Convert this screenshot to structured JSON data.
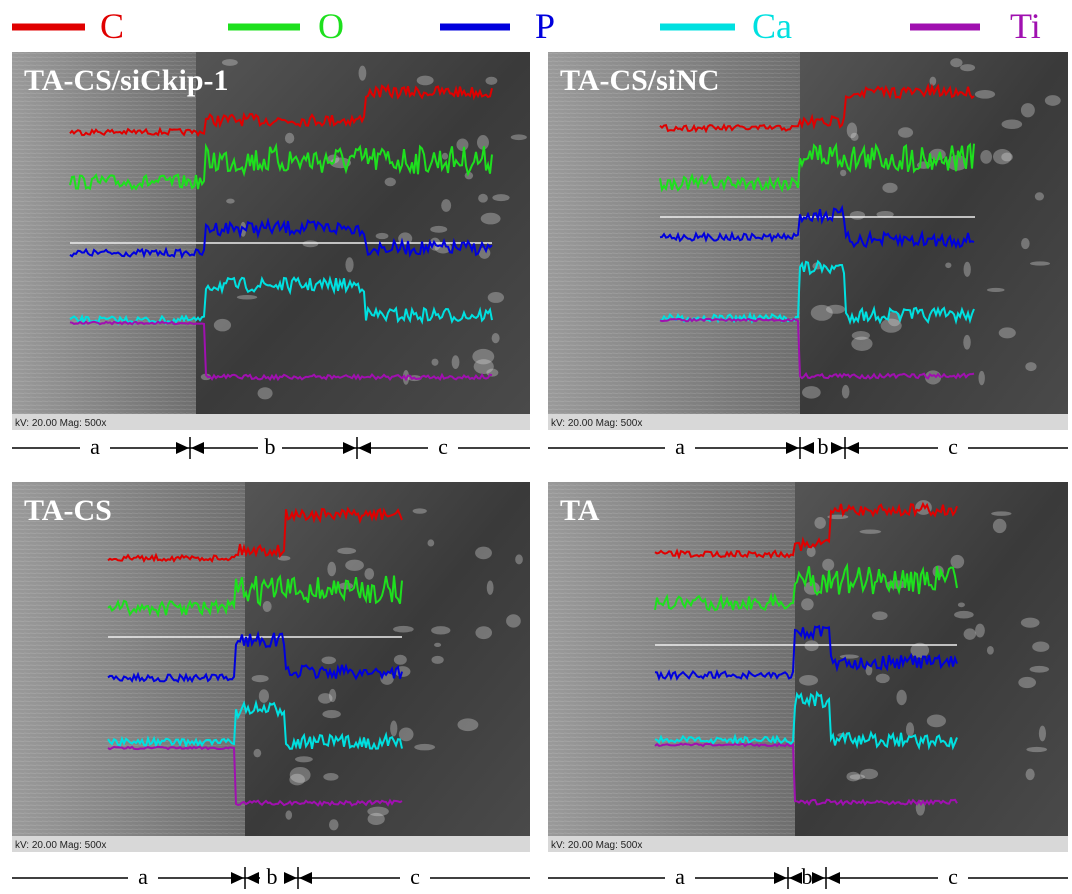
{
  "legend": [
    {
      "label": "C",
      "color": "#e00000"
    },
    {
      "label": "O",
      "color": "#1ee01e"
    },
    {
      "label": "P",
      "color": "#0000dd"
    },
    {
      "label": "Ca",
      "color": "#00e0e0"
    },
    {
      "label": "Ti",
      "color": "#a010b0"
    }
  ],
  "panels": [
    {
      "title": "TA-CS/siCkip-1",
      "info": "kV: 20.00 Mag: 500x",
      "regions": [
        "a",
        "b",
        "c"
      ]
    },
    {
      "title": "TA-CS/siNC",
      "info": "kV: 20.00 Mag: 500x",
      "regions": [
        "a",
        "b",
        "c"
      ]
    },
    {
      "title": "TA-CS",
      "info": "kV: 20.00 Mag: 500x",
      "regions": [
        "a",
        "b",
        "c"
      ]
    },
    {
      "title": "TA",
      "info": "kV: 20.00 Mag: 500x",
      "regions": [
        "a",
        "b",
        "c"
      ]
    }
  ]
}
